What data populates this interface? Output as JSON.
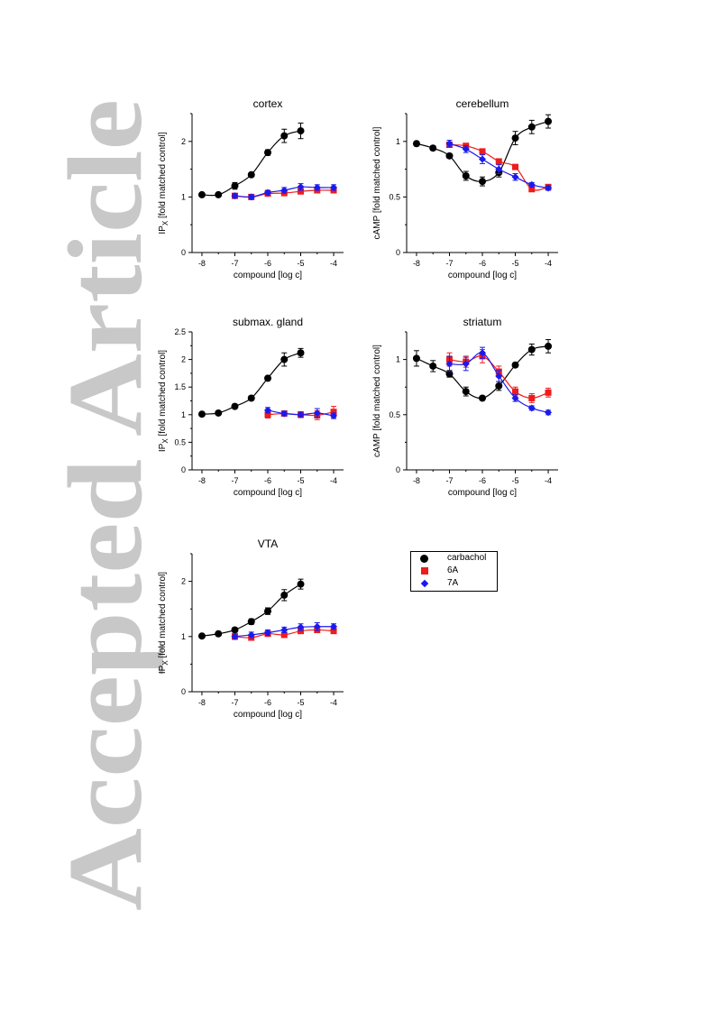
{
  "watermark": {
    "text": "Accepted Article"
  },
  "legend": {
    "entries": [
      {
        "label": "carbachol",
        "color": "#000000",
        "marker": "circle"
      },
      {
        "label": "6A",
        "color": "#ee1c1c",
        "marker": "square"
      },
      {
        "label": "7A",
        "color": "#1a1aee",
        "marker": "diamond"
      }
    ]
  },
  "chart_data": [
    {
      "type": "scatter",
      "title": "cortex",
      "xlabel": "compound [log c]",
      "ylabel": "IP",
      "ylabel_sub": "X",
      "ylabel_suffix": " [fold matched control]",
      "xlim": [
        -8.3,
        -3.7
      ],
      "ylim": [
        0,
        2.5
      ],
      "xticks": [
        -8,
        -7,
        -6,
        -5,
        -4
      ],
      "yticks": [
        0,
        1,
        2
      ],
      "series": [
        {
          "name": "carbachol",
          "x": [
            -8,
            -7.5,
            -7,
            -6.5,
            -6,
            -5.5,
            -5
          ],
          "y": [
            1.04,
            1.04,
            1.2,
            1.4,
            1.8,
            2.1,
            2.19
          ],
          "err": [
            0.02,
            0.02,
            0.06,
            0.03,
            0.05,
            0.12,
            0.14
          ]
        },
        {
          "name": "6A",
          "x": [
            -7,
            -6.5,
            -6,
            -5.5,
            -5,
            -4.5,
            -4
          ],
          "y": [
            1.02,
            1.0,
            1.06,
            1.07,
            1.1,
            1.12,
            1.12
          ],
          "err": [
            0.03,
            0.03,
            0.03,
            0.04,
            0.04,
            0.04,
            0.04
          ]
        },
        {
          "name": "7A",
          "x": [
            -7,
            -6.5,
            -6,
            -5.5,
            -5,
            -4.5,
            -4
          ],
          "y": [
            1.02,
            1.0,
            1.08,
            1.12,
            1.18,
            1.17,
            1.17
          ],
          "err": [
            0.04,
            0.04,
            0.04,
            0.05,
            0.06,
            0.05,
            0.05
          ]
        }
      ]
    },
    {
      "type": "scatter",
      "title": "cerebellum",
      "xlabel": "compound [log c]",
      "ylabel": "cAMP [fold matched control]",
      "xlim": [
        -8.3,
        -3.7
      ],
      "ylim": [
        0,
        1.25
      ],
      "xticks": [
        -8,
        -7,
        -6,
        -5,
        -4
      ],
      "yticks": [
        0,
        0.5,
        1
      ],
      "series": [
        {
          "name": "carbachol",
          "x": [
            -8,
            -7.5,
            -7,
            -6.5,
            -6,
            -5.5,
            -5,
            -4.5,
            -4
          ],
          "y": [
            0.98,
            0.94,
            0.87,
            0.69,
            0.64,
            0.72,
            1.03,
            1.13,
            1.18
          ],
          "err": [
            0.02,
            0.02,
            0.02,
            0.04,
            0.04,
            0.04,
            0.06,
            0.06,
            0.06
          ]
        },
        {
          "name": "6A",
          "x": [
            -7,
            -6.5,
            -6,
            -5.5,
            -5,
            -4.5,
            -4
          ],
          "y": [
            0.97,
            0.96,
            0.91,
            0.82,
            0.77,
            0.57,
            0.59
          ],
          "err": [
            0.02,
            0.02,
            0.02,
            0.02,
            0.02,
            0.02,
            0.02
          ]
        },
        {
          "name": "7A",
          "x": [
            -7,
            -6.5,
            -6,
            -5.5,
            -5,
            -4.5,
            -4
          ],
          "y": [
            0.98,
            0.93,
            0.84,
            0.75,
            0.68,
            0.61,
            0.58
          ],
          "err": [
            0.03,
            0.03,
            0.04,
            0.04,
            0.03,
            0.02,
            0.02
          ]
        }
      ]
    },
    {
      "type": "scatter",
      "title": "submax. gland",
      "xlabel": "compound [log c]",
      "ylabel": "IP",
      "ylabel_sub": "X",
      "ylabel_suffix": " [fold matched control]",
      "xlim": [
        -8.3,
        -3.7
      ],
      "ylim": [
        0,
        2.5
      ],
      "xticks": [
        -8,
        -7,
        -6,
        -5,
        -4
      ],
      "yticks": [
        0,
        0.5,
        1,
        1.5,
        2,
        2.5
      ],
      "series": [
        {
          "name": "carbachol",
          "x": [
            -8,
            -7.5,
            -7,
            -6.5,
            -6,
            -5.5,
            -5
          ],
          "y": [
            1.01,
            1.03,
            1.15,
            1.3,
            1.66,
            2.0,
            2.12
          ],
          "err": [
            0.03,
            0.03,
            0.04,
            0.04,
            0.04,
            0.12,
            0.08
          ]
        },
        {
          "name": "6A",
          "x": [
            -6,
            -5.5,
            -5,
            -4.5,
            -4
          ],
          "y": [
            1.0,
            1.02,
            1.0,
            0.99,
            1.05
          ],
          "err": [
            0.06,
            0.04,
            0.05,
            0.08,
            0.1
          ]
        },
        {
          "name": "7A",
          "x": [
            -6,
            -5.5,
            -5,
            -4.5,
            -4
          ],
          "y": [
            1.08,
            1.02,
            1.0,
            1.03,
            0.98
          ],
          "err": [
            0.05,
            0.04,
            0.05,
            0.08,
            0.05
          ]
        }
      ]
    },
    {
      "type": "scatter",
      "title": "striatum",
      "xlabel": "compound [log c]",
      "ylabel": "cAMP [fold matched control]",
      "xlim": [
        -8.3,
        -3.7
      ],
      "ylim": [
        0,
        1.25
      ],
      "xticks": [
        -8,
        -7,
        -6,
        -5,
        -4
      ],
      "yticks": [
        0,
        0.5,
        1
      ],
      "series": [
        {
          "name": "carbachol",
          "x": [
            -8,
            -7.5,
            -7,
            -6.5,
            -6,
            -5.5,
            -5,
            -4.5,
            -4
          ],
          "y": [
            1.01,
            0.94,
            0.87,
            0.71,
            0.65,
            0.76,
            0.95,
            1.09,
            1.12
          ],
          "err": [
            0.07,
            0.05,
            0.03,
            0.04,
            0.02,
            0.04,
            0.02,
            0.05,
            0.06
          ]
        },
        {
          "name": "6A",
          "x": [
            -7,
            -6.5,
            -6,
            -5.5,
            -5,
            -4.5,
            -4
          ],
          "y": [
            1.0,
            0.98,
            1.03,
            0.89,
            0.71,
            0.65,
            0.7
          ],
          "err": [
            0.06,
            0.05,
            0.06,
            0.05,
            0.04,
            0.04,
            0.04
          ]
        },
        {
          "name": "7A",
          "x": [
            -7,
            -6.5,
            -6,
            -5.5,
            -5,
            -4.5,
            -4
          ],
          "y": [
            0.96,
            0.96,
            1.06,
            0.85,
            0.65,
            0.56,
            0.52
          ],
          "err": [
            0.07,
            0.06,
            0.05,
            0.05,
            0.03,
            0.02,
            0.02
          ]
        }
      ]
    },
    {
      "type": "scatter",
      "title": "VTA",
      "xlabel": "compound [log c]",
      "ylabel": "IP",
      "ylabel_sub": "X",
      "ylabel_suffix": " [fold matched control]",
      "xlim": [
        -8.3,
        -3.7
      ],
      "ylim": [
        0,
        2.5
      ],
      "xticks": [
        -8,
        -7,
        -6,
        -5,
        -4
      ],
      "yticks": [
        0,
        1,
        2
      ],
      "series": [
        {
          "name": "carbachol",
          "x": [
            -8,
            -7.5,
            -7,
            -6.5,
            -6,
            -5.5,
            -5
          ],
          "y": [
            1.01,
            1.05,
            1.12,
            1.27,
            1.46,
            1.75,
            1.95
          ],
          "err": [
            0.02,
            0.02,
            0.04,
            0.05,
            0.06,
            0.1,
            0.09
          ]
        },
        {
          "name": "6A",
          "x": [
            -7,
            -6.5,
            -6,
            -5.5,
            -5,
            -4.5,
            -4
          ],
          "y": [
            1.0,
            0.98,
            1.05,
            1.03,
            1.1,
            1.12,
            1.1
          ],
          "err": [
            0.04,
            0.04,
            0.04,
            0.04,
            0.04,
            0.05,
            0.04
          ]
        },
        {
          "name": "7A",
          "x": [
            -7,
            -6.5,
            -6,
            -5.5,
            -5,
            -4.5,
            -4
          ],
          "y": [
            1.0,
            1.03,
            1.07,
            1.12,
            1.17,
            1.18,
            1.18
          ],
          "err": [
            0.05,
            0.05,
            0.05,
            0.05,
            0.06,
            0.07,
            0.05
          ]
        }
      ]
    }
  ]
}
